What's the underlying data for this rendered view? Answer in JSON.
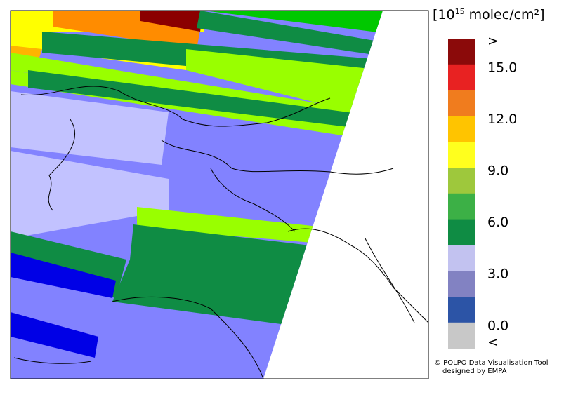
{
  "legend": {
    "title_prefix": "[10",
    "title_exponent": "15",
    "title_suffix": " molec/cm²]",
    "colors": [
      "#8b0a0a",
      "#e82222",
      "#f07c1e",
      "#ffc400",
      "#ffff1e",
      "#9ec83c",
      "#3cb046",
      "#0f8c44",
      "#c2c2f0",
      "#8282c2",
      "#2c54a6",
      "#c8c8c8"
    ],
    "labels": [
      ">",
      "15.0",
      "12.0",
      "9.0",
      "6.0",
      "3.0",
      "0.0",
      "<"
    ]
  },
  "credit": {
    "line1": "© POLPO Data Visualisation Tool",
    "line2": "designed by EMPA"
  }
}
